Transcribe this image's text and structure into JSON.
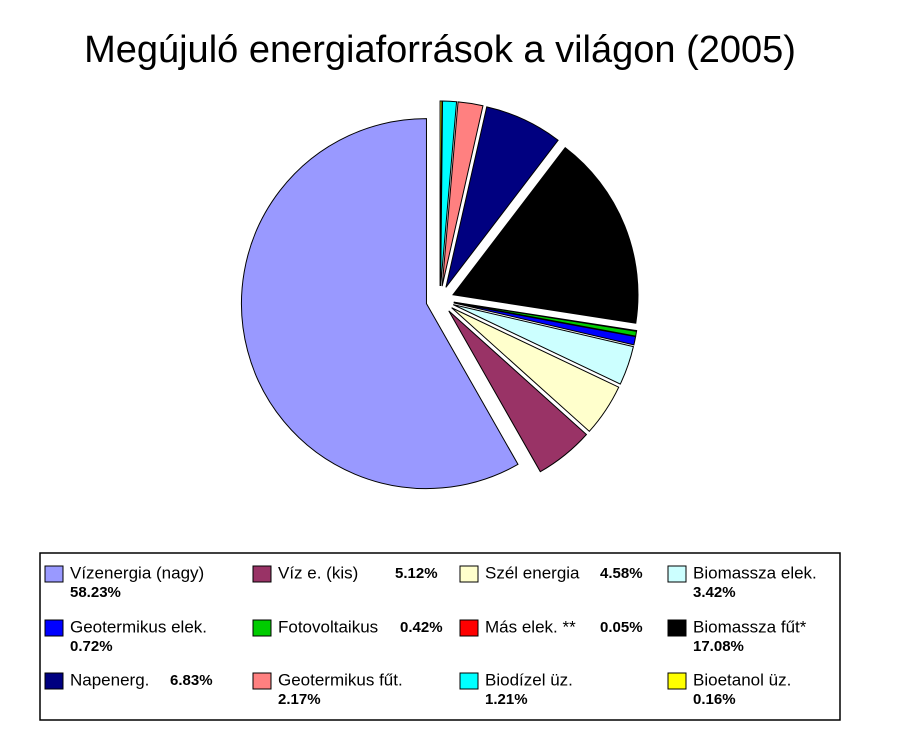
{
  "chart_data": {
    "type": "pie",
    "title": "Megújuló energiaforrások a világon (2005)",
    "categories": [
      "Vízenergia (nagy)",
      "Víz e. (kis)",
      "Szél energia",
      "Biomassza elek.",
      "Geotermikus elek.",
      "Fotovoltaikus",
      "Más elek. **",
      "Biomassza fűt*",
      "Napenerg.",
      "Geotermikus fűt.",
      "Biodízel üz.",
      "Bioetanol üz."
    ],
    "values": [
      58.23,
      5.12,
      4.58,
      3.42,
      0.72,
      0.42,
      0.05,
      17.08,
      6.83,
      2.17,
      1.21,
      0.16
    ],
    "value_labels": [
      "58.23%",
      "5.12%",
      "4.58%",
      "3.42%",
      "0.72%",
      "0.42%",
      "0.05%",
      "17.08%",
      "6.83%",
      "2.17%",
      "1.21%",
      "0.16%"
    ],
    "colors": [
      "#9999ff",
      "#993366",
      "#ffffcc",
      "#ccffff",
      "#0000ff",
      "#00cc00",
      "#ff0000",
      "#000000",
      "#000080",
      "#ff8080",
      "#00ffff",
      "#ffff00"
    ],
    "direction": "counterclockwise",
    "start": "top"
  }
}
